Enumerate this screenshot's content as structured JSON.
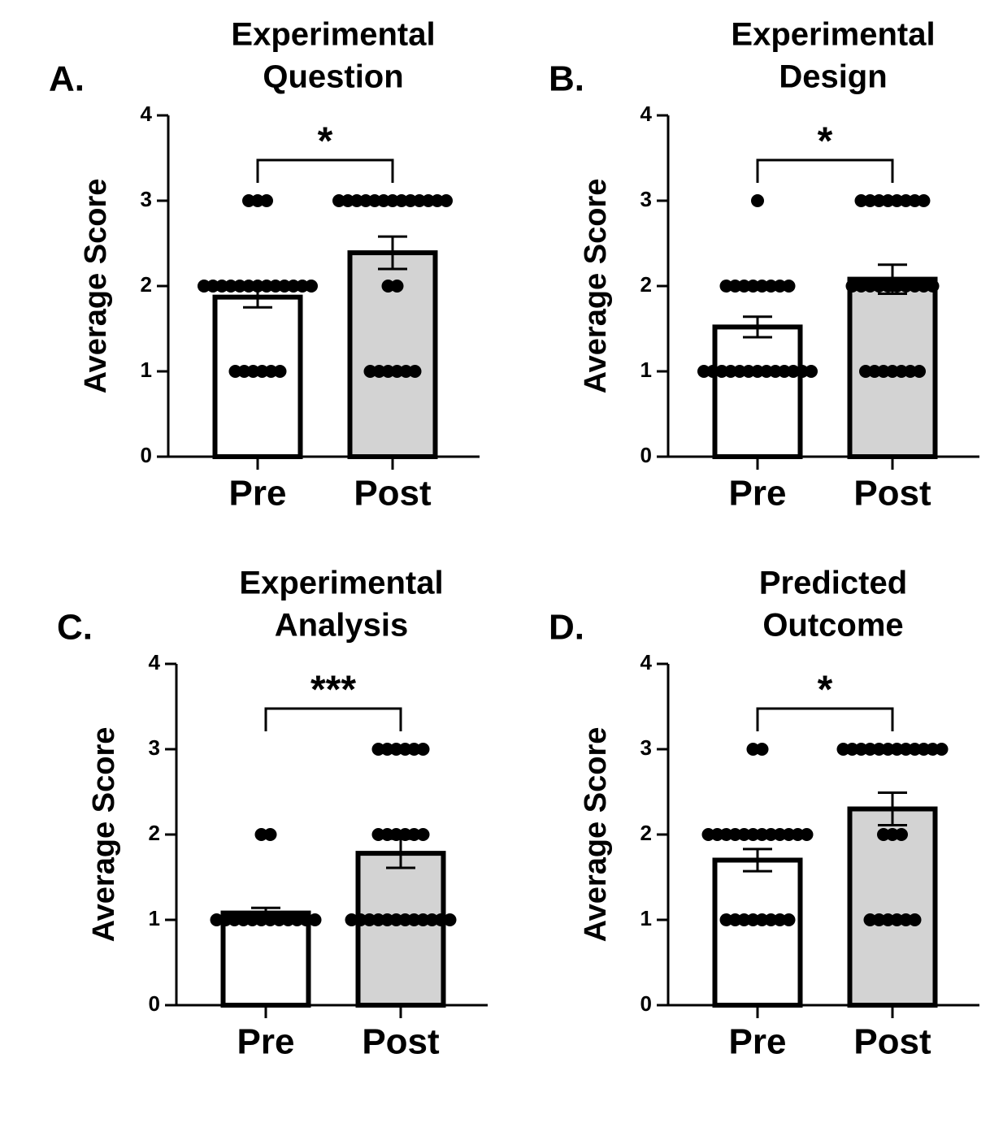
{
  "chart_data": [
    {
      "type": "bar",
      "panel": "A.",
      "title_lines": [
        "Experimental",
        "Question"
      ],
      "ylabel": "Average Score",
      "categories": [
        "Pre",
        "Post"
      ],
      "values": [
        1.87,
        2.39
      ],
      "errors": [
        0.12,
        0.19
      ],
      "colors": [
        "#ffffff",
        "#d3d3d3"
      ],
      "points": [
        [
          3,
          3,
          3,
          2,
          2,
          2,
          2,
          2,
          2,
          2,
          2,
          2,
          2,
          2,
          2,
          2,
          1,
          1,
          1,
          1,
          1,
          1
        ],
        [
          3,
          3,
          3,
          3,
          3,
          3,
          3,
          3,
          3,
          3,
          3,
          3,
          3,
          2,
          2,
          1,
          1,
          1,
          1,
          1,
          1
        ]
      ],
      "significance": "*",
      "ylim": [
        0,
        4
      ],
      "yticks": [
        0,
        1,
        2,
        3,
        4
      ]
    },
    {
      "type": "bar",
      "panel": "B.",
      "title_lines": [
        "Experimental",
        "Design"
      ],
      "ylabel": "Average Score",
      "categories": [
        "Pre",
        "Post"
      ],
      "values": [
        1.52,
        2.08
      ],
      "errors": [
        0.12,
        0.17
      ],
      "colors": [
        "#ffffff",
        "#d3d3d3"
      ],
      "points": [
        [
          3,
          2,
          2,
          2,
          2,
          2,
          2,
          2,
          2,
          1,
          1,
          1,
          1,
          1,
          1,
          1,
          1,
          1,
          1,
          1,
          1,
          1
        ],
        [
          3,
          3,
          3,
          3,
          3,
          3,
          3,
          3,
          2,
          2,
          2,
          2,
          2,
          2,
          2,
          2,
          2,
          2,
          1,
          1,
          1,
          1,
          1,
          1,
          1
        ]
      ],
      "significance": "*",
      "ylim": [
        0,
        4
      ],
      "yticks": [
        0,
        1,
        2,
        3,
        4
      ]
    },
    {
      "type": "bar",
      "panel": "C.",
      "title_lines": [
        "Experimental",
        "Analysis"
      ],
      "ylabel": "Average Score",
      "categories": [
        "Pre",
        "Post"
      ],
      "values": [
        1.08,
        1.78
      ],
      "errors": [
        0.06,
        0.17
      ],
      "colors": [
        "#ffffff",
        "#d3d3d3"
      ],
      "points": [
        [
          2,
          2,
          1,
          1,
          1,
          1,
          1,
          1,
          1,
          1,
          1,
          1,
          1,
          1
        ],
        [
          3,
          3,
          3,
          3,
          3,
          3,
          2,
          2,
          2,
          2,
          2,
          2,
          1,
          1,
          1,
          1,
          1,
          1,
          1,
          1,
          1,
          1,
          1,
          1
        ]
      ],
      "significance": "***",
      "ylim": [
        0,
        4
      ],
      "yticks": [
        0,
        1,
        2,
        3,
        4
      ]
    },
    {
      "type": "bar",
      "panel": "D.",
      "title_lines": [
        "Predicted",
        "Outcome"
      ],
      "ylabel": "Average Score",
      "categories": [
        "Pre",
        "Post"
      ],
      "values": [
        1.7,
        2.3
      ],
      "errors": [
        0.13,
        0.19
      ],
      "colors": [
        "#ffffff",
        "#d3d3d3"
      ],
      "points": [
        [
          3,
          3,
          2,
          2,
          2,
          2,
          2,
          2,
          2,
          2,
          2,
          2,
          2,
          2,
          1,
          1,
          1,
          1,
          1,
          1,
          1,
          1
        ],
        [
          3,
          3,
          3,
          3,
          3,
          3,
          3,
          3,
          3,
          3,
          3,
          3,
          2,
          2,
          2,
          1,
          1,
          1,
          1,
          1,
          1
        ]
      ],
      "significance": "*",
      "ylim": [
        0,
        4
      ],
      "yticks": [
        0,
        1,
        2,
        3,
        4
      ]
    }
  ]
}
